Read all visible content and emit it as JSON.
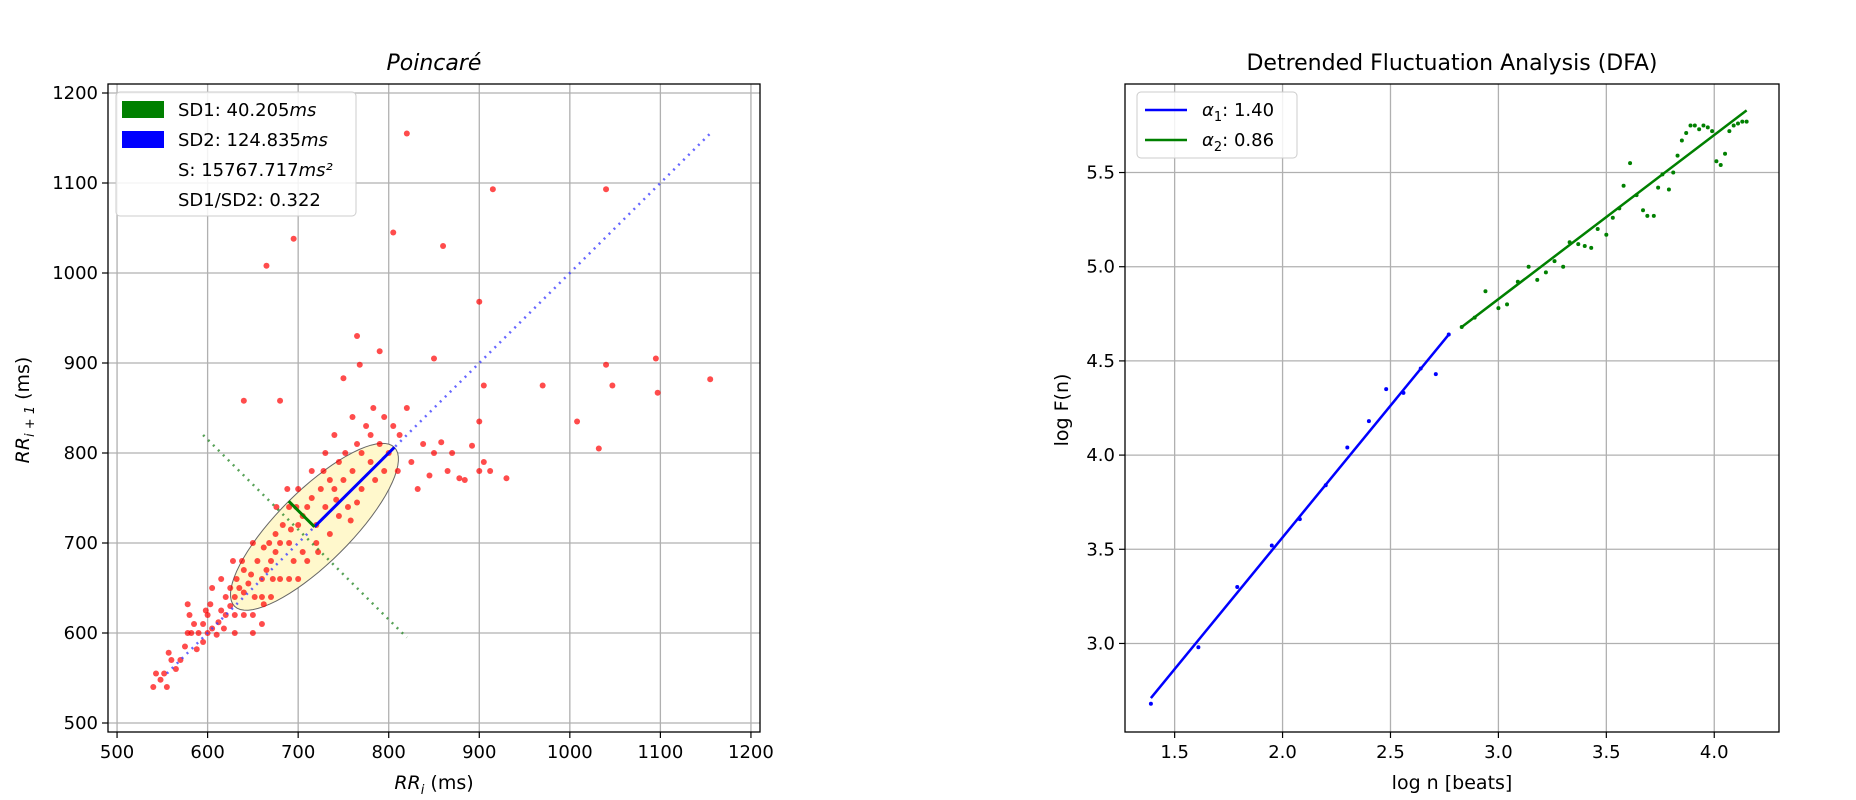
{
  "chart_data": [
    {
      "type": "scatter",
      "title": "Poincaré",
      "xlabel_base": "RR",
      "xlabel_sub": "i",
      "xlabel_unit": " (ms)",
      "ylabel_base": "RR",
      "ylabel_sub": "i + 1",
      "ylabel_unit": " (ms)",
      "xlim": [
        490,
        1210
      ],
      "ylim": [
        490,
        1210
      ],
      "xticks": [
        500,
        600,
        700,
        800,
        900,
        1000,
        1100,
        1200
      ],
      "yticks": [
        500,
        600,
        700,
        800,
        900,
        1000,
        1100,
        1200
      ],
      "grid": true,
      "legend_position": "top-left",
      "legend": [
        {
          "label": "SD1: 40.205",
          "unit": "ms",
          "color": "#008000"
        },
        {
          "label": "SD2: 124.835",
          "unit": "ms",
          "color": "#0000ff"
        },
        {
          "label": "S: 15767.717",
          "unit": "ms²",
          "color": ""
        },
        {
          "label": "SD1/SD2: 0.322",
          "unit": "",
          "color": ""
        }
      ],
      "center": [
        718,
        718
      ],
      "sd1": 40.205,
      "sd2": 124.835,
      "ellipse_fill": "#fff8cc",
      "point_color": "#ff0000",
      "identity_line": [
        [
          555,
          555
        ],
        [
          1155,
          1155
        ]
      ],
      "perpendicular_line": [
        [
          595,
          820
        ],
        [
          820,
          595
        ]
      ],
      "points": [
        [
          540,
          540
        ],
        [
          543,
          555
        ],
        [
          548,
          548
        ],
        [
          555,
          540
        ],
        [
          552,
          555
        ],
        [
          560,
          570
        ],
        [
          565,
          560
        ],
        [
          557,
          578
        ],
        [
          575,
          585
        ],
        [
          570,
          570
        ],
        [
          578,
          600
        ],
        [
          580,
          620
        ],
        [
          585,
          610
        ],
        [
          578,
          632
        ],
        [
          590,
          600
        ],
        [
          595,
          610
        ],
        [
          600,
          620
        ],
        [
          603,
          632
        ],
        [
          595,
          590
        ],
        [
          600,
          600
        ],
        [
          605,
          605
        ],
        [
          612,
          612
        ],
        [
          615,
          625
        ],
        [
          620,
          620
        ],
        [
          610,
          598
        ],
        [
          620,
          640
        ],
        [
          625,
          630
        ],
        [
          630,
          620
        ],
        [
          630,
          640
        ],
        [
          635,
          650
        ],
        [
          640,
          645
        ],
        [
          645,
          655
        ],
        [
          648,
          665
        ],
        [
          625,
          650
        ],
        [
          632,
          660
        ],
        [
          640,
          670
        ],
        [
          652,
          640
        ],
        [
          655,
          680
        ],
        [
          660,
          660
        ],
        [
          665,
          670
        ],
        [
          670,
          680
        ],
        [
          662,
          695
        ],
        [
          668,
          700
        ],
        [
          675,
          690
        ],
        [
          680,
          700
        ],
        [
          675,
          710
        ],
        [
          683,
          720
        ],
        [
          690,
          700
        ],
        [
          692,
          715
        ],
        [
          700,
          720
        ],
        [
          705,
          730
        ],
        [
          698,
          740
        ],
        [
          710,
          740
        ],
        [
          715,
          750
        ],
        [
          720,
          720
        ],
        [
          725,
          760
        ],
        [
          730,
          740
        ],
        [
          735,
          770
        ],
        [
          728,
          780
        ],
        [
          740,
          760
        ],
        [
          745,
          790
        ],
        [
          750,
          770
        ],
        [
          752,
          800
        ],
        [
          760,
          780
        ],
        [
          765,
          810
        ],
        [
          770,
          800
        ],
        [
          775,
          830
        ],
        [
          780,
          790
        ],
        [
          783,
          850
        ],
        [
          790,
          810
        ],
        [
          795,
          840
        ],
        [
          800,
          800
        ],
        [
          805,
          830
        ],
        [
          810,
          780
        ],
        [
          812,
          820
        ],
        [
          820,
          850
        ],
        [
          825,
          790
        ],
        [
          832,
          760
        ],
        [
          838,
          810
        ],
        [
          845,
          775
        ],
        [
          850,
          800
        ],
        [
          858,
          812
        ],
        [
          865,
          780
        ],
        [
          870,
          800
        ],
        [
          878,
          772
        ],
        [
          884,
          770
        ],
        [
          892,
          808
        ],
        [
          900,
          780
        ],
        [
          905,
          790
        ],
        [
          912,
          780
        ],
        [
          930,
          772
        ],
        [
          900,
          835
        ],
        [
          905,
          875
        ],
        [
          970,
          875
        ],
        [
          1008,
          835
        ],
        [
          1032,
          805
        ],
        [
          1040,
          898
        ],
        [
          1047,
          875
        ],
        [
          1095,
          905
        ],
        [
          1097,
          867
        ],
        [
          1155,
          882
        ],
        [
          850,
          905
        ],
        [
          860,
          1030
        ],
        [
          805,
          1045
        ],
        [
          915,
          1093
        ],
        [
          1040,
          1093
        ],
        [
          820,
          1155
        ],
        [
          695,
          1038
        ],
        [
          665,
          1008
        ],
        [
          900,
          968
        ],
        [
          680,
          858
        ],
        [
          765,
          930
        ],
        [
          768,
          898
        ],
        [
          790,
          913
        ],
        [
          750,
          883
        ],
        [
          640,
          858
        ],
        [
          605,
          650
        ],
        [
          615,
          660
        ],
        [
          650,
          600
        ],
        [
          660,
          610
        ],
        [
          640,
          620
        ],
        [
          670,
          640
        ],
        [
          680,
          660
        ],
        [
          695,
          680
        ],
        [
          700,
          660
        ],
        [
          710,
          680
        ],
        [
          720,
          700
        ],
        [
          735,
          710
        ],
        [
          745,
          730
        ],
        [
          755,
          740
        ],
        [
          770,
          760
        ],
        [
          785,
          770
        ],
        [
          795,
          780
        ],
        [
          730,
          800
        ],
        [
          740,
          820
        ],
        [
          715,
          780
        ],
        [
          700,
          760
        ],
        [
          690,
          740
        ],
        [
          760,
          840
        ],
        [
          722,
          690
        ],
        [
          588,
          582
        ],
        [
          582,
          600
        ],
        [
          598,
          625
        ],
        [
          618,
          605
        ],
        [
          630,
          600
        ],
        [
          660,
          640
        ],
        [
          672,
          660
        ],
        [
          690,
          660
        ],
        [
          705,
          690
        ],
        [
          742,
          748
        ],
        [
          758,
          725
        ],
        [
          765,
          745
        ],
        [
          780,
          820
        ],
        [
          688,
          760
        ],
        [
          676,
          740
        ],
        [
          650,
          700
        ],
        [
          638,
          680
        ],
        [
          628,
          680
        ],
        [
          650,
          620
        ],
        [
          662,
          632
        ]
      ]
    },
    {
      "type": "line",
      "title": "Detrended Fluctuation Analysis (DFA)",
      "xlabel": "log n [beats]",
      "ylabel": "log F(n)",
      "xlim": [
        1.27,
        4.3
      ],
      "ylim": [
        2.53,
        5.97
      ],
      "xticks": [
        1.5,
        2.0,
        2.5,
        3.0,
        3.5,
        4.0
      ],
      "yticks": [
        3.0,
        3.5,
        4.0,
        4.5,
        5.0,
        5.5
      ],
      "grid": true,
      "legend_position": "top-left",
      "series": [
        {
          "name": "α",
          "sub": "1",
          "value": ": 1.40",
          "color": "#0000ff",
          "fit": [
            [
              1.39,
              2.71
            ],
            [
              2.77,
              4.64
            ]
          ],
          "points": [
            [
              1.39,
              2.68
            ],
            [
              1.61,
              2.98
            ],
            [
              1.79,
              3.3
            ],
            [
              1.95,
              3.52
            ],
            [
              2.08,
              3.66
            ],
            [
              2.2,
              3.84
            ],
            [
              2.3,
              4.04
            ],
            [
              2.4,
              4.18
            ],
            [
              2.48,
              4.35
            ],
            [
              2.56,
              4.33
            ],
            [
              2.64,
              4.46
            ],
            [
              2.71,
              4.43
            ],
            [
              2.77,
              4.64
            ]
          ]
        },
        {
          "name": "α",
          "sub": "2",
          "value": ": 0.86",
          "color": "#008000",
          "fit": [
            [
              2.83,
              4.68
            ],
            [
              4.15,
              5.83
            ]
          ],
          "points": [
            [
              2.83,
              4.68
            ],
            [
              2.89,
              4.73
            ],
            [
              2.94,
              4.87
            ],
            [
              3.0,
              4.78
            ],
            [
              3.04,
              4.8
            ],
            [
              3.09,
              4.92
            ],
            [
              3.14,
              5.0
            ],
            [
              3.18,
              4.93
            ],
            [
              3.22,
              4.97
            ],
            [
              3.26,
              5.03
            ],
            [
              3.3,
              5.0
            ],
            [
              3.33,
              5.13
            ],
            [
              3.37,
              5.12
            ],
            [
              3.4,
              5.11
            ],
            [
              3.43,
              5.1
            ],
            [
              3.46,
              5.2
            ],
            [
              3.5,
              5.17
            ],
            [
              3.53,
              5.26
            ],
            [
              3.56,
              5.31
            ],
            [
              3.58,
              5.43
            ],
            [
              3.61,
              5.55
            ],
            [
              3.64,
              5.38
            ],
            [
              3.67,
              5.3
            ],
            [
              3.69,
              5.27
            ],
            [
              3.72,
              5.27
            ],
            [
              3.74,
              5.42
            ],
            [
              3.76,
              5.49
            ],
            [
              3.79,
              5.41
            ],
            [
              3.81,
              5.5
            ],
            [
              3.83,
              5.59
            ],
            [
              3.85,
              5.67
            ],
            [
              3.87,
              5.71
            ],
            [
              3.89,
              5.75
            ],
            [
              3.91,
              5.75
            ],
            [
              3.93,
              5.73
            ],
            [
              3.95,
              5.75
            ],
            [
              3.97,
              5.74
            ],
            [
              3.99,
              5.72
            ],
            [
              4.01,
              5.56
            ],
            [
              4.03,
              5.54
            ],
            [
              4.05,
              5.6
            ],
            [
              4.07,
              5.72
            ],
            [
              4.09,
              5.75
            ],
            [
              4.11,
              5.76
            ],
            [
              4.13,
              5.77
            ],
            [
              4.15,
              5.77
            ]
          ]
        }
      ]
    }
  ]
}
